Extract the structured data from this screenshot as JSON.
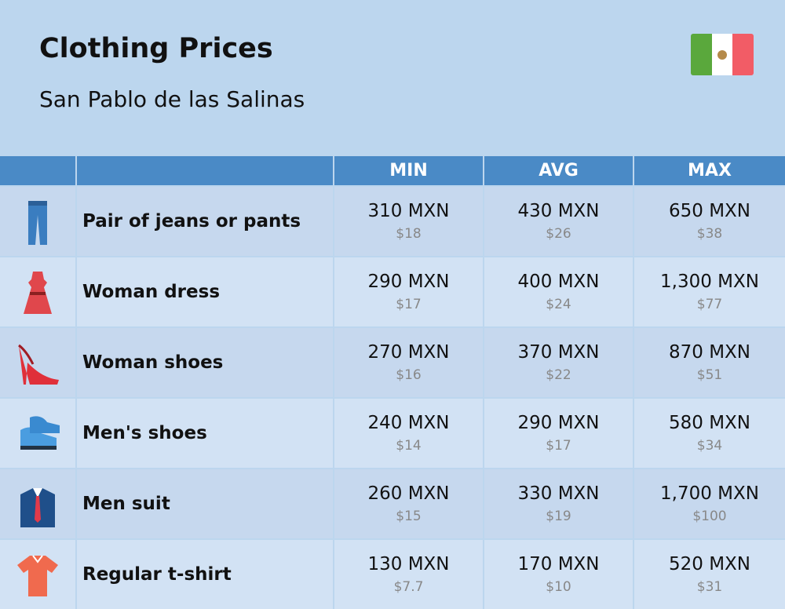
{
  "header": {
    "title": "Clothing Prices",
    "subtitle": "San Pablo de las Salinas"
  },
  "table": {
    "columns": [
      "MIN",
      "AVG",
      "MAX"
    ],
    "rows": [
      {
        "name": "Pair of jeans or pants",
        "cells": [
          [
            "310 MXN",
            "$18"
          ],
          [
            "430 MXN",
            "$26"
          ],
          [
            "650 MXN",
            "$38"
          ]
        ]
      },
      {
        "name": "Woman dress",
        "cells": [
          [
            "290 MXN",
            "$17"
          ],
          [
            "400 MXN",
            "$24"
          ],
          [
            "1,300 MXN",
            "$77"
          ]
        ]
      },
      {
        "name": "Woman shoes",
        "cells": [
          [
            "270 MXN",
            "$16"
          ],
          [
            "370 MXN",
            "$22"
          ],
          [
            "870 MXN",
            "$51"
          ]
        ]
      },
      {
        "name": "Men's shoes",
        "cells": [
          [
            "240 MXN",
            "$14"
          ],
          [
            "290 MXN",
            "$17"
          ],
          [
            "580 MXN",
            "$34"
          ]
        ]
      },
      {
        "name": "Men suit",
        "cells": [
          [
            "260 MXN",
            "$15"
          ],
          [
            "330 MXN",
            "$19"
          ],
          [
            "1,700 MXN",
            "$100"
          ]
        ]
      },
      {
        "name": "Regular t-shirt",
        "cells": [
          [
            "130 MXN",
            "$7.7"
          ],
          [
            "170 MXN",
            "$10"
          ],
          [
            "520 MXN",
            "$31"
          ]
        ]
      }
    ]
  }
}
